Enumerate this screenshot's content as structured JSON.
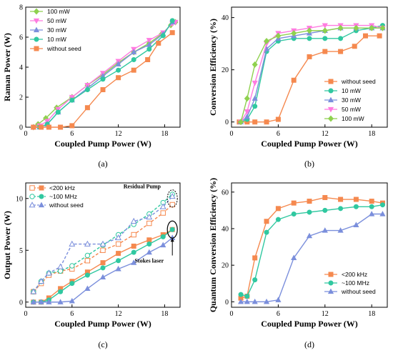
{
  "chart_data": [
    {
      "type": "line",
      "panel": "(a)",
      "xlabel": "Coupled Pump Power (W)",
      "ylabel": "Raman Power (W)",
      "xlim": [
        0,
        20
      ],
      "ylim": [
        0,
        8
      ],
      "xticks": [
        0,
        6,
        12,
        18
      ],
      "yticks": [
        0,
        2,
        4,
        6,
        8
      ],
      "legend_position": "top-left",
      "series": [
        {
          "name": "100 mW",
          "color": "#8fd14f",
          "marker": "diamond",
          "dashed": false,
          "x": [
            1.0,
            1.6,
            2.6,
            4.0,
            6.0,
            8.0,
            10.0,
            12.0,
            14.0,
            16.0,
            17.6,
            18.8,
            19.4
          ],
          "y": [
            0.0,
            0.2,
            0.6,
            1.3,
            2.0,
            2.8,
            3.5,
            4.3,
            5.0,
            5.6,
            6.2,
            6.8,
            7.0
          ]
        },
        {
          "name": "50 mW",
          "color": "#ff7be0",
          "marker": "triangle-down",
          "dashed": false,
          "x": [
            1.0,
            1.8,
            2.8,
            4.2,
            6.0,
            8.0,
            10.0,
            12.0,
            14.0,
            16.0,
            17.8,
            19.0,
            19.4
          ],
          "y": [
            0.0,
            0.1,
            0.4,
            1.2,
            2.0,
            2.8,
            3.6,
            4.4,
            5.2,
            5.8,
            6.3,
            6.9,
            7.0
          ]
        },
        {
          "name": "30 mW",
          "color": "#7b8fdc",
          "marker": "triangle",
          "dashed": false,
          "x": [
            1.0,
            1.8,
            2.8,
            4.2,
            6.0,
            8.0,
            10.0,
            12.0,
            14.0,
            16.0,
            17.8,
            19.0
          ],
          "y": [
            0.0,
            0.0,
            0.2,
            1.0,
            1.8,
            2.6,
            3.4,
            4.2,
            5.0,
            5.5,
            6.2,
            7.0
          ]
        },
        {
          "name": "10 mW",
          "color": "#30c8a0",
          "marker": "circle",
          "dashed": false,
          "x": [
            1.0,
            1.8,
            2.8,
            4.2,
            6.0,
            8.0,
            10.0,
            12.0,
            14.0,
            16.0,
            17.8,
            19.0
          ],
          "y": [
            0.0,
            0.0,
            0.2,
            1.0,
            1.8,
            2.5,
            3.2,
            3.8,
            4.5,
            5.2,
            6.1,
            7.1
          ]
        },
        {
          "name": "without seed",
          "color": "#f5894f",
          "marker": "square",
          "dashed": false,
          "x": [
            1.0,
            2.0,
            3.0,
            4.5,
            6.0,
            8.0,
            10.0,
            12.0,
            14.0,
            15.8,
            17.2,
            19.0
          ],
          "y": [
            0.0,
            0.0,
            0.0,
            0.0,
            0.1,
            1.3,
            2.5,
            3.3,
            3.8,
            4.5,
            5.6,
            6.3
          ]
        }
      ]
    },
    {
      "type": "line",
      "panel": "(b)",
      "xlabel": "Coupled Pump Power (W)",
      "ylabel": "Conversion Efficiency (%)",
      "xlim": [
        0,
        20
      ],
      "ylim": [
        -2,
        44
      ],
      "xticks": [
        0,
        6,
        12,
        18
      ],
      "yticks": [
        0,
        20,
        40
      ],
      "legend_position": "center-right",
      "series": [
        {
          "name": "without seed",
          "color": "#f5894f",
          "marker": "square",
          "dashed": false,
          "x": [
            1.0,
            2.0,
            3.0,
            4.5,
            6.0,
            8.0,
            10.0,
            12.0,
            14.0,
            15.8,
            17.2,
            19.0
          ],
          "y": [
            0.0,
            0.0,
            0.0,
            0.0,
            1.0,
            16.0,
            25.0,
            27.0,
            27.0,
            29.0,
            33.0,
            33.0
          ]
        },
        {
          "name": "10 mW",
          "color": "#30c8a0",
          "marker": "circle",
          "dashed": false,
          "x": [
            1.2,
            2.0,
            3.0,
            4.5,
            6.0,
            8.0,
            10.0,
            12.0,
            14.0,
            16.0,
            18.0,
            19.4
          ],
          "y": [
            0.0,
            1.0,
            6.0,
            27.0,
            31.0,
            32.0,
            32.0,
            32.0,
            32.0,
            35.0,
            36.0,
            37.0
          ]
        },
        {
          "name": "30 mW",
          "color": "#7b8fdc",
          "marker": "triangle",
          "dashed": false,
          "x": [
            1.2,
            2.0,
            3.0,
            4.5,
            6.0,
            8.0,
            10.0,
            12.0,
            14.0,
            16.0,
            18.0,
            19.4
          ],
          "y": [
            0.0,
            2.0,
            9.0,
            28.0,
            32.0,
            33.0,
            34.0,
            35.0,
            36.0,
            36.0,
            36.0,
            36.0
          ]
        },
        {
          "name": "50 mW",
          "color": "#ff7be0",
          "marker": "triangle-down",
          "dashed": false,
          "x": [
            1.2,
            2.0,
            3.0,
            4.5,
            6.0,
            8.0,
            10.0,
            12.0,
            14.0,
            16.0,
            18.0,
            19.4
          ],
          "y": [
            0.0,
            4.0,
            15.0,
            30.0,
            34.0,
            35.0,
            36.0,
            37.0,
            37.0,
            37.0,
            37.0,
            36.0
          ]
        },
        {
          "name": "100 mW",
          "color": "#8fd14f",
          "marker": "diamond",
          "dashed": false,
          "x": [
            1.2,
            2.0,
            3.0,
            4.5,
            6.0,
            8.0,
            10.0,
            12.0,
            14.0,
            16.0,
            18.0,
            19.4
          ],
          "y": [
            0.0,
            9.0,
            22.0,
            31.0,
            33.0,
            34.0,
            35.0,
            35.0,
            36.0,
            36.0,
            36.0,
            36.0
          ]
        }
      ]
    },
    {
      "type": "line",
      "panel": "(c)",
      "xlabel": "Coupled Pump Power (W)",
      "ylabel": "Output Power (W)",
      "xlim": [
        0,
        20
      ],
      "ylim": [
        -0.5,
        11.5
      ],
      "xticks": [
        0,
        6,
        12,
        18
      ],
      "yticks": [
        0,
        5,
        10
      ],
      "legend_position": "top-left",
      "annotations": [
        "Residual Pump",
        "Stokes laser"
      ],
      "series": [
        {
          "name": "<200 kHz",
          "color": "#f5894f",
          "marker": "square",
          "dashed": false,
          "legend": true,
          "x": [
            1.0,
            2.0,
            3.0,
            4.5,
            6.0,
            8.0,
            10.0,
            12.0,
            14.0,
            16.0,
            17.8,
            19.0
          ],
          "y": [
            0.0,
            0.0,
            0.4,
            1.3,
            2.0,
            2.9,
            3.8,
            4.7,
            5.4,
            6.0,
            6.5,
            7.0
          ]
        },
        {
          "name": "<200 kHz",
          "color": "#f5894f",
          "marker": "square-open",
          "dashed": true,
          "legend": true,
          "x": [
            1.0,
            2.0,
            3.0,
            4.5,
            6.0,
            8.0,
            10.0,
            12.0,
            14.0,
            16.0,
            17.8,
            19.0
          ],
          "y": [
            1.0,
            1.8,
            2.6,
            3.0,
            3.2,
            4.0,
            5.0,
            5.6,
            6.5,
            7.6,
            8.6,
            9.4
          ]
        },
        {
          "name": "~100 MHz",
          "color": "#30c8a0",
          "marker": "circle",
          "dashed": false,
          "legend": true,
          "x": [
            1.0,
            2.0,
            3.0,
            4.5,
            6.0,
            8.0,
            10.0,
            12.0,
            14.0,
            16.0,
            17.8,
            19.0
          ],
          "y": [
            0.0,
            0.0,
            0.2,
            1.0,
            1.8,
            2.6,
            3.3,
            4.0,
            4.8,
            5.6,
            6.3,
            7.0
          ]
        },
        {
          "name": "~100 MHz",
          "color": "#30c8a0",
          "marker": "circle-open",
          "dashed": true,
          "legend": true,
          "x": [
            1.0,
            2.0,
            3.0,
            4.5,
            6.0,
            8.0,
            10.0,
            12.0,
            14.0,
            16.0,
            17.8,
            19.0
          ],
          "y": [
            1.0,
            2.0,
            2.8,
            3.0,
            3.5,
            4.5,
            5.5,
            6.5,
            7.5,
            8.5,
            9.6,
            10.4
          ]
        },
        {
          "name": "without seed",
          "color": "#7b8fdc",
          "marker": "triangle",
          "dashed": false,
          "legend": true,
          "x": [
            1.0,
            2.0,
            3.0,
            4.5,
            6.0,
            8.0,
            10.0,
            12.0,
            14.0,
            16.0,
            17.8,
            19.0
          ],
          "y": [
            0.0,
            0.0,
            0.0,
            0.0,
            0.1,
            1.3,
            2.4,
            3.2,
            3.8,
            4.8,
            5.5,
            6.2
          ]
        },
        {
          "name": "without seed",
          "color": "#7b8fdc",
          "marker": "triangle-open",
          "dashed": true,
          "legend": true,
          "x": [
            1.0,
            2.0,
            3.0,
            4.5,
            6.0,
            8.0,
            10.0,
            12.0,
            14.0,
            16.0,
            17.8,
            19.0
          ],
          "y": [
            1.0,
            2.0,
            2.8,
            3.4,
            5.6,
            5.6,
            5.6,
            6.2,
            7.8,
            8.2,
            9.2,
            10.2
          ]
        }
      ]
    },
    {
      "type": "line",
      "panel": "(d)",
      "xlabel": "Coupled Pump Power (W)",
      "ylabel": "Quantum Conversion Efficiency (%)",
      "xlim": [
        0,
        20
      ],
      "ylim": [
        -3,
        65
      ],
      "xticks": [
        0,
        6,
        12,
        18
      ],
      "yticks": [
        0,
        20,
        40,
        60
      ],
      "legend_position": "bottom-right",
      "series": [
        {
          "name": "<200 kHz",
          "color": "#f5894f",
          "marker": "square",
          "dashed": false,
          "x": [
            1.2,
            2.0,
            3.0,
            4.5,
            6.0,
            8.0,
            10.0,
            12.0,
            14.0,
            16.0,
            18.0,
            19.4
          ],
          "y": [
            2.0,
            3.0,
            24.0,
            44.0,
            51.0,
            54.0,
            55.0,
            57.0,
            56.0,
            56.0,
            55.0,
            54.0
          ]
        },
        {
          "name": "~100 MHz",
          "color": "#30c8a0",
          "marker": "circle",
          "dashed": false,
          "x": [
            1.2,
            2.0,
            3.0,
            4.5,
            6.0,
            8.0,
            10.0,
            12.0,
            14.0,
            16.0,
            18.0,
            19.4
          ],
          "y": [
            4.0,
            3.0,
            12.0,
            38.0,
            45.0,
            48.0,
            49.0,
            50.0,
            51.0,
            52.0,
            52.0,
            53.0
          ]
        },
        {
          "name": "without seed",
          "color": "#7b8fdc",
          "marker": "triangle",
          "dashed": false,
          "x": [
            1.2,
            2.0,
            3.0,
            4.5,
            6.0,
            8.0,
            10.0,
            12.0,
            14.0,
            16.0,
            18.0,
            19.4
          ],
          "y": [
            0.0,
            0.0,
            0.0,
            0.0,
            1.0,
            24.0,
            36.0,
            39.0,
            39.0,
            42.0,
            48.0,
            48.0
          ]
        }
      ]
    }
  ]
}
